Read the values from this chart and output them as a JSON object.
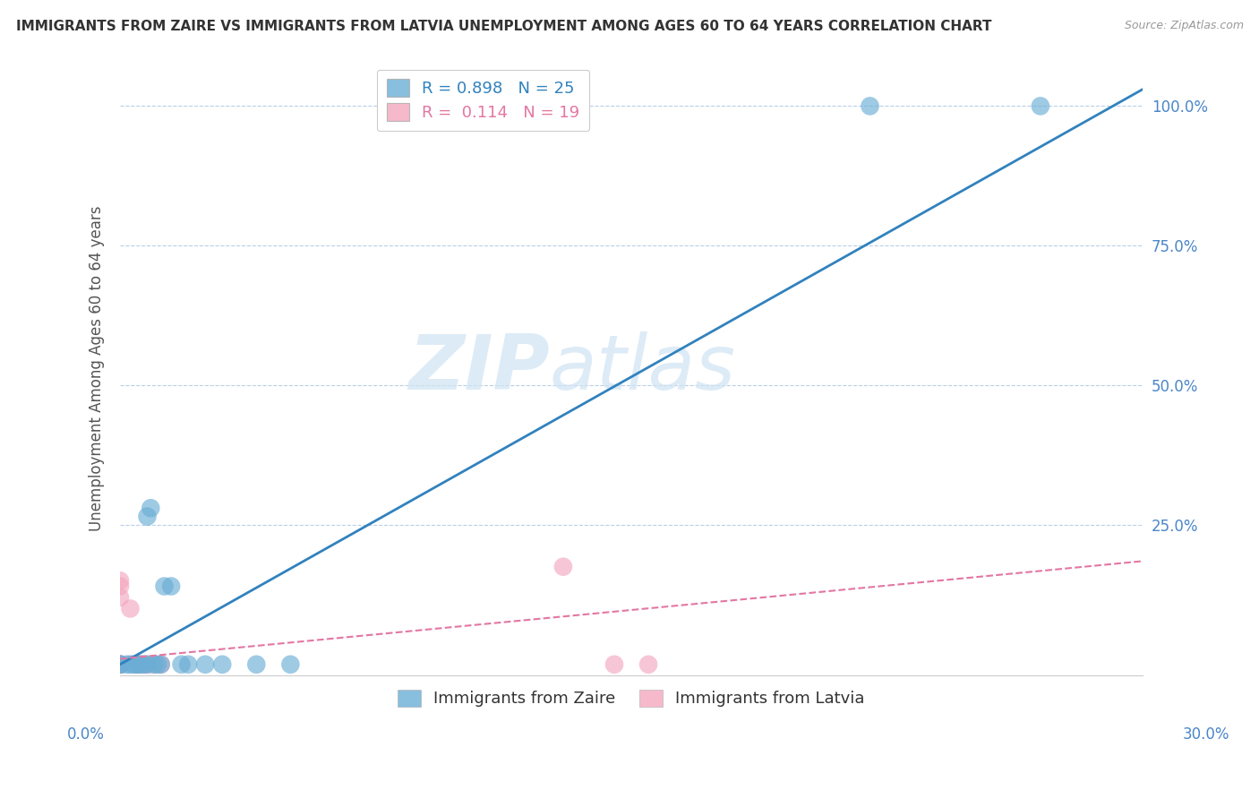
{
  "title": "IMMIGRANTS FROM ZAIRE VS IMMIGRANTS FROM LATVIA UNEMPLOYMENT AMONG AGES 60 TO 64 YEARS CORRELATION CHART",
  "source": "Source: ZipAtlas.com",
  "xlabel_bottom_left": "0.0%",
  "xlabel_bottom_right": "30.0%",
  "ylabel": "Unemployment Among Ages 60 to 64 years",
  "yticks": [
    0.0,
    0.25,
    0.5,
    0.75,
    1.0
  ],
  "ytick_labels": [
    "",
    "25.0%",
    "50.0%",
    "75.0%",
    "100.0%"
  ],
  "xlim": [
    0.0,
    0.3
  ],
  "ylim": [
    -0.02,
    1.08
  ],
  "zaire_R": 0.898,
  "zaire_N": 25,
  "latvia_R": 0.114,
  "latvia_N": 19,
  "zaire_color": "#6baed6",
  "latvia_color": "#f4a8c0",
  "zaire_line_color": "#3182bd",
  "latvia_line_color": "#e377a2",
  "background_color": "#ffffff",
  "grid_color": "#b8cfe8",
  "watermark_zip": "ZIP",
  "watermark_atlas": "atlas",
  "zaire_points_x": [
    0.0,
    0.0,
    0.002,
    0.003,
    0.004,
    0.005,
    0.005,
    0.006,
    0.007,
    0.008,
    0.008,
    0.009,
    0.01,
    0.011,
    0.012,
    0.013,
    0.015,
    0.018,
    0.02,
    0.025,
    0.03,
    0.04,
    0.05,
    0.22,
    0.27
  ],
  "zaire_points_y": [
    0.0,
    0.0,
    0.0,
    0.0,
    0.0,
    0.0,
    0.0,
    0.0,
    0.0,
    0.0,
    0.265,
    0.28,
    0.0,
    0.0,
    0.0,
    0.14,
    0.14,
    0.0,
    0.0,
    0.0,
    0.0,
    0.0,
    0.0,
    1.0,
    1.0
  ],
  "latvia_points_x": [
    0.0,
    0.0,
    0.0,
    0.0,
    0.0,
    0.0,
    0.0,
    0.0,
    0.0,
    0.003,
    0.005,
    0.006,
    0.007,
    0.008,
    0.01,
    0.012,
    0.13,
    0.145,
    0.155
  ],
  "latvia_points_y": [
    0.0,
    0.0,
    0.0,
    0.12,
    0.14,
    0.15,
    0.0,
    0.0,
    0.0,
    0.1,
    0.0,
    0.0,
    0.0,
    0.0,
    0.0,
    0.0,
    0.175,
    0.0,
    0.0
  ],
  "zaire_line_x": [
    0.0,
    0.3
  ],
  "zaire_line_y": [
    0.0,
    1.03
  ],
  "latvia_line_x": [
    0.0,
    0.3
  ],
  "latvia_line_y": [
    0.01,
    0.185
  ]
}
